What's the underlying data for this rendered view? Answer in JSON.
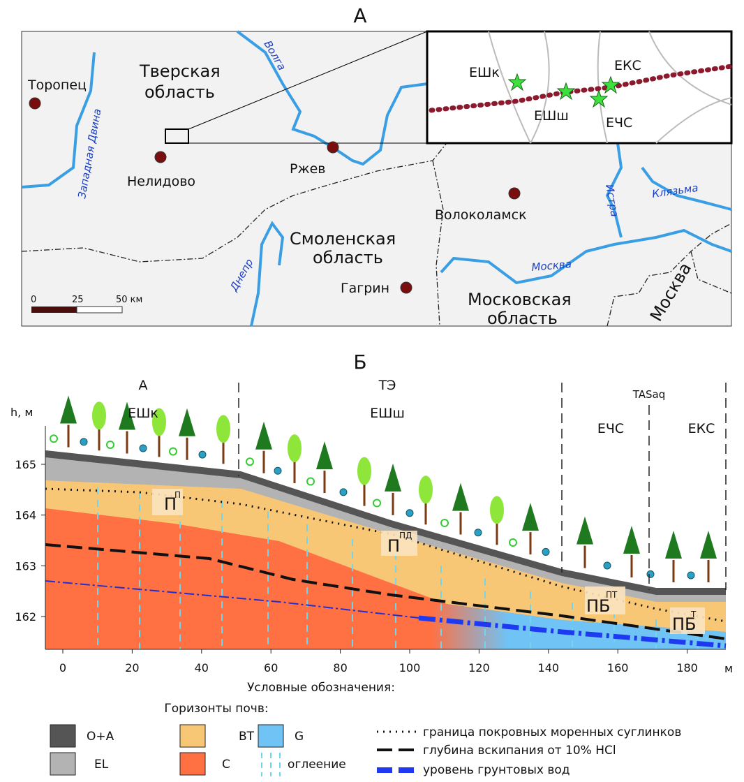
{
  "panel_a": {
    "title": "А",
    "cities": [
      "Торопец",
      "Нелидово",
      "Ржев",
      "Волоколамск",
      "Гагрин"
    ],
    "regions": [
      [
        "Тверская",
        "область"
      ],
      [
        "Смоленская",
        "область"
      ],
      [
        "Московская",
        "область"
      ],
      [
        "Москва"
      ]
    ],
    "rivers": [
      "Западная Двина",
      "Волга",
      "Днепр",
      "Истра",
      "Клязьма",
      "Москва"
    ],
    "scale": [
      "0",
      "25",
      "50 км"
    ],
    "inset_sites": [
      "ЕШк",
      "ЕШш",
      "ЕКС",
      "ЕЧС"
    ]
  },
  "panel_b": {
    "title": "Б",
    "y_label": "h, м",
    "x_unit": "м",
    "xticks": [
      0,
      20,
      40,
      60,
      80,
      100,
      120,
      140,
      160,
      180
    ],
    "yticks": [
      162,
      163,
      164,
      165
    ],
    "zones": [
      "А",
      "ТЭ",
      "TASaq"
    ],
    "sites": [
      "ЕШк",
      "ЕШш",
      "ЕЧС",
      "ЕКС"
    ],
    "horizon_labels": [
      {
        "base": "П",
        "sup": "П"
      },
      {
        "base": "П",
        "sup": "ПД"
      },
      {
        "base": "ПБ",
        "sup": "ПТ"
      },
      {
        "base": "ПБ",
        "sup": "Т"
      }
    ]
  },
  "legend": {
    "title": "Условные обозначения:",
    "subtitle": "Горизонты почв:",
    "horizons": [
      "O+A",
      "EL",
      "BT",
      "C",
      "G"
    ],
    "gleying": "оглеение",
    "lines": [
      "граница покровных моренных суглинков",
      "глубина вскипания от 10% HCl",
      "уровень грунтовых вод"
    ]
  }
}
